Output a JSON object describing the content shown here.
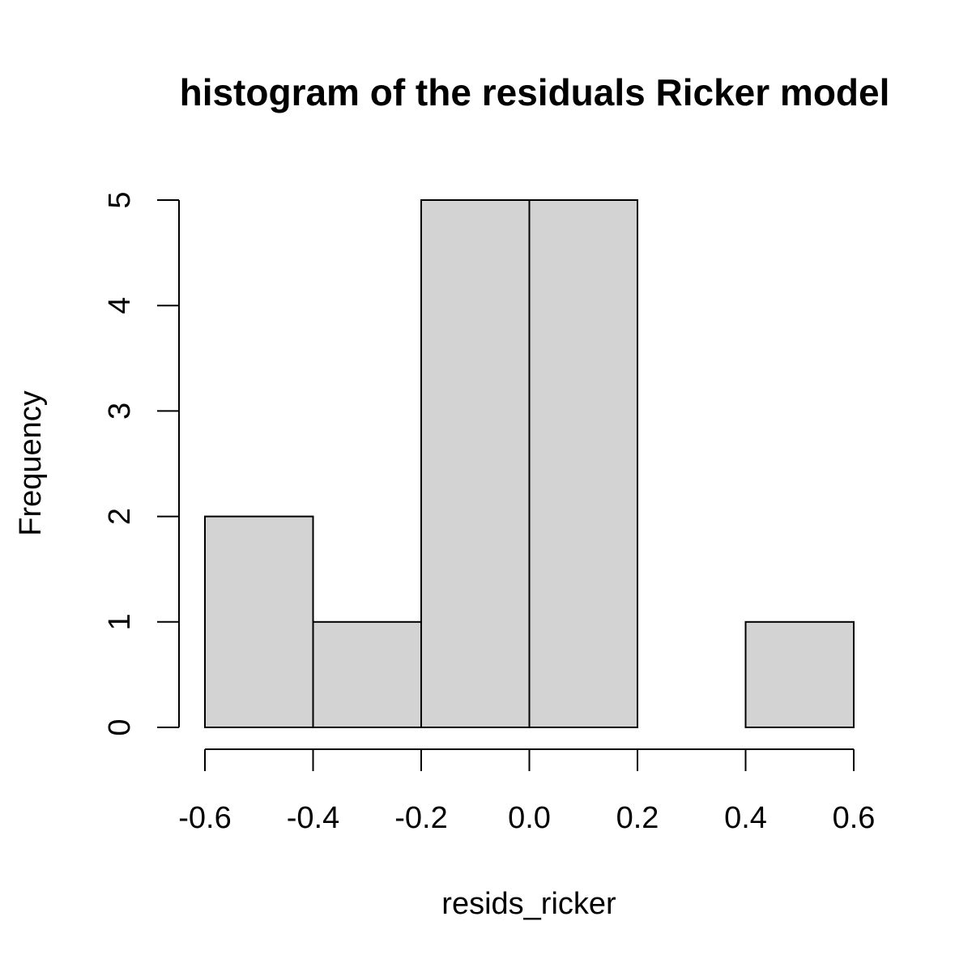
{
  "chart_data": {
    "type": "bar",
    "title": "histogram of the residuals Ricker model",
    "xlabel": "resids_ricker",
    "ylabel": "Frequency",
    "bins": [
      {
        "x0": -0.6,
        "x1": -0.4,
        "count": 2
      },
      {
        "x0": -0.4,
        "x1": -0.2,
        "count": 1
      },
      {
        "x0": -0.2,
        "x1": 0.0,
        "count": 5
      },
      {
        "x0": 0.0,
        "x1": 0.2,
        "count": 5
      },
      {
        "x0": 0.2,
        "x1": 0.4,
        "count": 0
      },
      {
        "x0": 0.4,
        "x1": 0.6,
        "count": 1
      }
    ],
    "xlim": [
      -0.6,
      0.6
    ],
    "ylim": [
      0,
      5
    ],
    "x_ticks": [
      {
        "value": -0.6,
        "label": "-0.6"
      },
      {
        "value": -0.4,
        "label": "-0.4"
      },
      {
        "value": -0.2,
        "label": "-0.2"
      },
      {
        "value": 0.0,
        "label": "0.0"
      },
      {
        "value": 0.2,
        "label": "0.2"
      },
      {
        "value": 0.4,
        "label": "0.4"
      },
      {
        "value": 0.6,
        "label": "0.6"
      }
    ],
    "y_ticks": [
      {
        "value": 0,
        "label": "0"
      },
      {
        "value": 1,
        "label": "1"
      },
      {
        "value": 2,
        "label": "2"
      },
      {
        "value": 3,
        "label": "3"
      },
      {
        "value": 4,
        "label": "4"
      },
      {
        "value": 5,
        "label": "5"
      }
    ],
    "bar_fill": "#d3d3d3",
    "bar_stroke": "#000000",
    "grid": false
  }
}
